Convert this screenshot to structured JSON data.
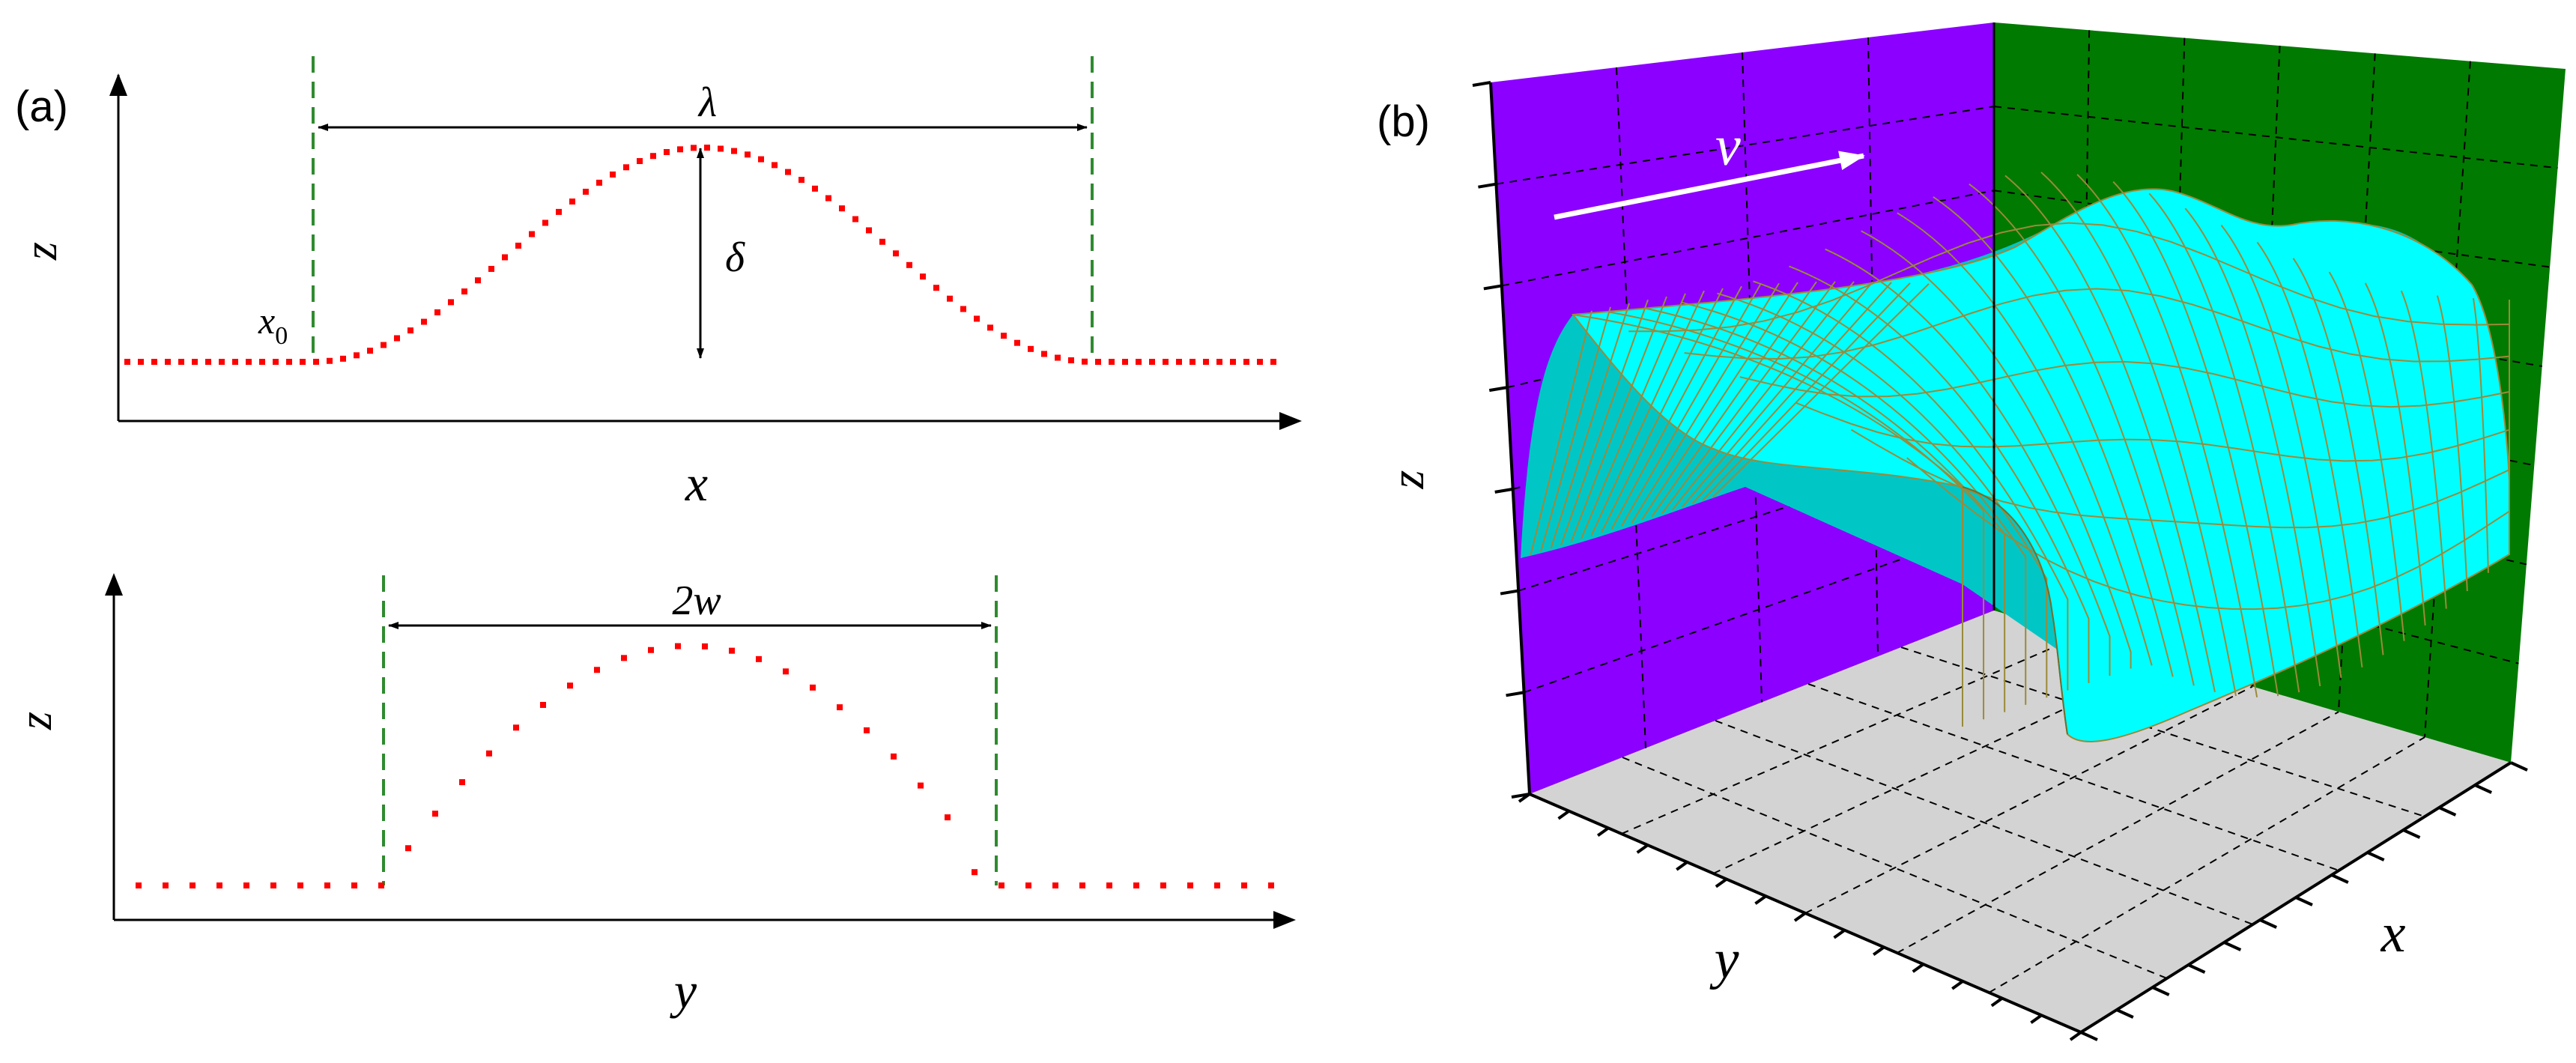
{
  "panel_a": {
    "label": "(a)",
    "top": {
      "z_axis_label": "z",
      "x_axis_label": "x",
      "wavelength_label": "λ",
      "amplitude_label": "δ",
      "start_label": "x",
      "start_subscript": "0"
    },
    "bottom": {
      "z_axis_label": "z",
      "y_axis_label": "y",
      "width_label": "2w"
    }
  },
  "panel_b": {
    "label": "(b)",
    "z_axis_label": "z",
    "x_axis_label": "x",
    "y_axis_label": "y",
    "velocity_label": "v"
  },
  "colors": {
    "profile": "#ff0000",
    "boundary": "#006400",
    "axes": "#000000",
    "back_wall": "#8b00ff",
    "side_wall": "#007a00",
    "floor": "#d3d3d3",
    "surface": "#00ffff",
    "surface_grid": "#9a8a3a"
  }
}
